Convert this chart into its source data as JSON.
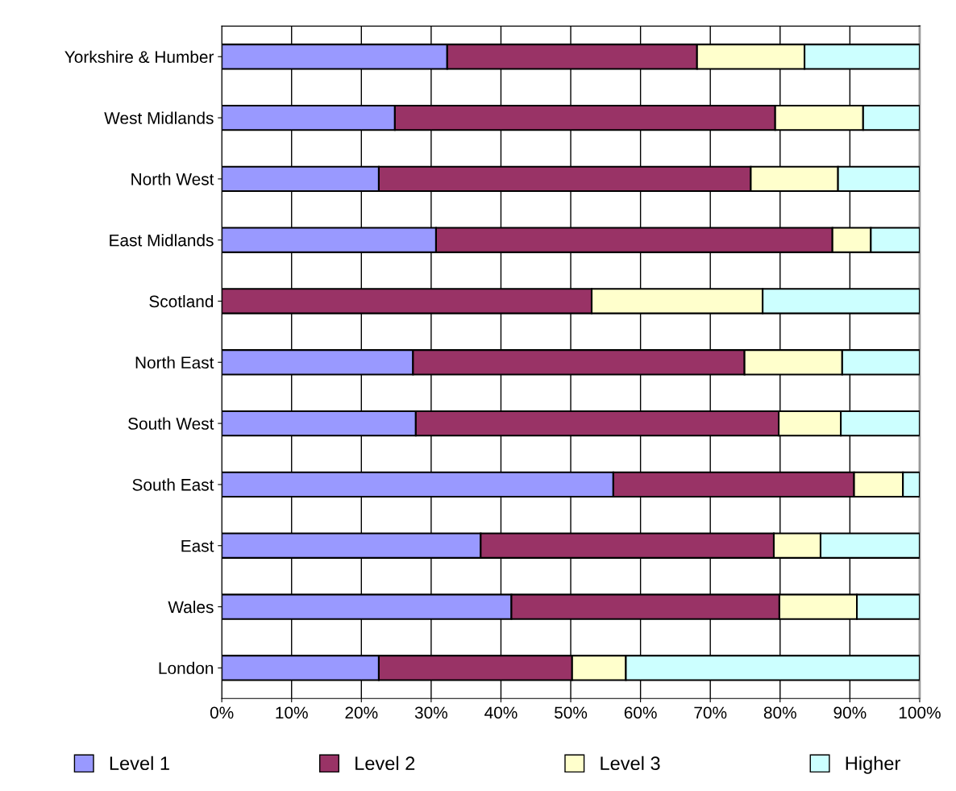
{
  "chart_data": {
    "type": "bar",
    "orientation": "horizontal",
    "stacked": true,
    "categories": [
      "Yorkshire & Humber",
      "West Midlands",
      "North West",
      "East Midlands",
      "Scotland",
      "North East",
      "South West",
      "South East",
      "East",
      "Wales",
      "London"
    ],
    "series": [
      {
        "name": "Level 1",
        "color": "#9999ff",
        "values": [
          32.3,
          24.8,
          22.5,
          30.7,
          0,
          27.4,
          27.8,
          56.1,
          37.1,
          41.5,
          22.5
        ]
      },
      {
        "name": "Level 2",
        "color": "#993366",
        "values": [
          35.8,
          54.5,
          53.3,
          56.8,
          53.0,
          47.5,
          52.0,
          34.5,
          42.0,
          38.4,
          27.7
        ]
      },
      {
        "name": "Level 3",
        "color": "#ffffcc",
        "values": [
          15.4,
          12.6,
          12.5,
          5.5,
          24.5,
          14.0,
          8.9,
          7.0,
          6.7,
          11.1,
          7.7
        ]
      },
      {
        "name": "Higher",
        "color": "#ccffff",
        "values": [
          16.5,
          8.1,
          11.7,
          7.0,
          22.5,
          11.1,
          11.3,
          2.4,
          14.2,
          9.0,
          42.1
        ]
      }
    ],
    "xlim": [
      0,
      100
    ],
    "xticks": [
      {
        "value": 0,
        "label": "0%"
      },
      {
        "value": 10,
        "label": "10%"
      },
      {
        "value": 20,
        "label": "20%"
      },
      {
        "value": 30,
        "label": "30%"
      },
      {
        "value": 40,
        "label": "40%"
      },
      {
        "value": 50,
        "label": "50%"
      },
      {
        "value": 60,
        "label": "60%"
      },
      {
        "value": 70,
        "label": "70%"
      },
      {
        "value": 80,
        "label": "80%"
      },
      {
        "value": 90,
        "label": "90%"
      },
      {
        "value": 100,
        "label": "100%"
      }
    ],
    "grid": "x",
    "legend": "bottom"
  }
}
